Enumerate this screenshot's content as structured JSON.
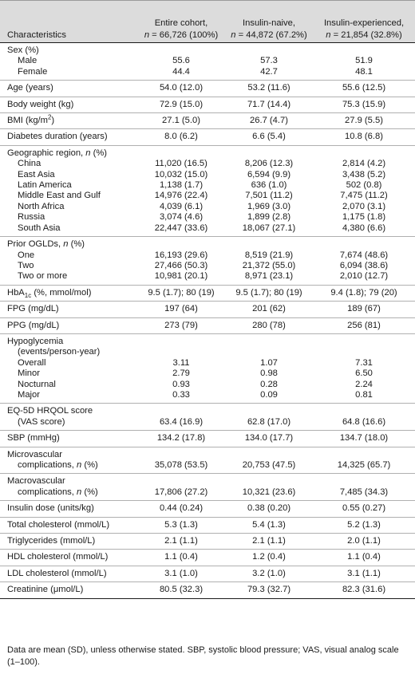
{
  "header": {
    "characteristics": "Characteristics",
    "cols": [
      {
        "line1": "Entire cohort,",
        "n_label": "n",
        "n_rest": " = 66,726 (100%)"
      },
      {
        "line1": "Insulin-naive,",
        "n_label": "n",
        "n_rest": " = 44,872 (67.2%)"
      },
      {
        "line1": "Insulin-experienced,",
        "n_label": "n",
        "n_rest": " = 21,854 (32.8%)"
      }
    ]
  },
  "rows": {
    "sex": {
      "label": "Sex (%)",
      "male": "Male",
      "female": "Female",
      "male_vals": [
        "55.6",
        "57.3",
        "51.9"
      ],
      "female_vals": [
        "44.4",
        "42.7",
        "48.1"
      ]
    },
    "age": {
      "label": "Age (years)",
      "vals": [
        "54.0 (12.0)",
        "53.2 (11.6)",
        "55.6 (12.5)"
      ]
    },
    "weight": {
      "label": "Body weight (kg)",
      "vals": [
        "72.9 (15.0)",
        "71.7 (14.4)",
        "75.3 (15.9)"
      ]
    },
    "bmi": {
      "label_pre": "BMI (kg/m",
      "label_sup": "2",
      "label_post": ")",
      "vals": [
        "27.1 (5.0)",
        "26.7 (4.7)",
        "27.9 (5.5)"
      ]
    },
    "duration": {
      "label": "Diabetes duration (years)",
      "vals": [
        "8.0 (6.2)",
        "6.6 (5.4)",
        "10.8 (6.8)"
      ]
    },
    "region": {
      "label_pre": "Geographic region, ",
      "label_n": "n",
      "label_post": " (%)",
      "items": [
        {
          "name": "China",
          "vals": [
            "11,020 (16.5)",
            "8,206 (12.3)",
            "2,814 (4.2)"
          ]
        },
        {
          "name": "East Asia",
          "vals": [
            "10,032 (15.0)",
            "6,594 (9.9)",
            "3,438 (5.2)"
          ]
        },
        {
          "name": "Latin America",
          "vals": [
            "1,138 (1.7)",
            "636 (1.0)",
            "502 (0.8)"
          ]
        },
        {
          "name": "Middle East and Gulf",
          "vals": [
            "14,976 (22.4)",
            "7,501 (11.2)",
            "7,475 (11.2)"
          ]
        },
        {
          "name": "North Africa",
          "vals": [
            "4,039 (6.1)",
            "1,969 (3.0)",
            "2,070 (3.1)"
          ]
        },
        {
          "name": "Russia",
          "vals": [
            "3,074 (4.6)",
            "1,899 (2.8)",
            "1,175 (1.8)"
          ]
        },
        {
          "name": "South Asia",
          "vals": [
            "22,447 (33.6)",
            "18,067 (27.1)",
            "4,380 (6.6)"
          ]
        }
      ]
    },
    "ogld": {
      "label_pre": "Prior OGLDs, ",
      "label_n": "n",
      "label_post": " (%)",
      "items": [
        {
          "name": "One",
          "vals": [
            "16,193 (29.6)",
            "8,519 (21.9)",
            "7,674 (48.6)"
          ]
        },
        {
          "name": "Two",
          "vals": [
            "27,466 (50.3)",
            "21,372 (55.0)",
            "6,094 (38.6)"
          ]
        },
        {
          "name": "Two or more",
          "vals": [
            "10,981 (20.1)",
            "8,971 (23.1)",
            "2,010 (12.7)"
          ]
        }
      ]
    },
    "hba1c": {
      "label_pre": "HbA",
      "label_sub": "1c",
      "label_post": " (%, mmol/mol)",
      "vals": [
        "9.5 (1.7); 80 (19)",
        "9.5 (1.7); 80 (19)",
        "9.4 (1.8); 79 (20)"
      ]
    },
    "fpg": {
      "label": "FPG (mg/dL)",
      "vals": [
        "197 (64)",
        "201 (62)",
        "189 (67)"
      ]
    },
    "ppg": {
      "label": "PPG (mg/dL)",
      "vals": [
        "273 (79)",
        "280 (78)",
        "256 (81)"
      ]
    },
    "hypo": {
      "label": "Hypoglycemia",
      "label2": "(events/person-year)",
      "items": [
        {
          "name": "Overall",
          "vals": [
            "3.11",
            "1.07",
            "7.31"
          ]
        },
        {
          "name": "Minor",
          "vals": [
            "2.79",
            "0.98",
            "6.50"
          ]
        },
        {
          "name": "Nocturnal",
          "vals": [
            "0.93",
            "0.28",
            "2.24"
          ]
        },
        {
          "name": "Major",
          "vals": [
            "0.33",
            "0.09",
            "0.81"
          ]
        }
      ]
    },
    "eq5d": {
      "label": "EQ-5D HRQOL score",
      "label2": "(VAS score)",
      "vals": [
        "63.4 (16.9)",
        "62.8 (17.0)",
        "64.8 (16.6)"
      ]
    },
    "sbp": {
      "label": "SBP (mmHg)",
      "vals": [
        "134.2 (17.8)",
        "134.0 (17.7)",
        "134.7 (18.0)"
      ]
    },
    "micro": {
      "label": "Microvascular",
      "label2_pre": "complications, ",
      "label2_n": "n",
      "label2_post": " (%)",
      "vals": [
        "35,078 (53.5)",
        "20,753 (47.5)",
        "14,325 (65.7)"
      ]
    },
    "macro": {
      "label": "Macrovascular",
      "label2_pre": "complications, ",
      "label2_n": "n",
      "label2_post": " (%)",
      "vals": [
        "17,806 (27.2)",
        "10,321 (23.6)",
        "7,485 (34.3)"
      ]
    },
    "insulin": {
      "label": "Insulin dose (units/kg)",
      "vals": [
        "0.44 (0.24)",
        "0.38 (0.20)",
        "0.55 (0.27)"
      ]
    },
    "tc": {
      "label": "Total cholesterol (mmol/L)",
      "vals": [
        "5.3 (1.3)",
        "5.4 (1.3)",
        "5.2 (1.3)"
      ]
    },
    "tg": {
      "label": "Triglycerides (mmol/L)",
      "vals": [
        "2.1 (1.1)",
        "2.1 (1.1)",
        "2.0 (1.1)"
      ]
    },
    "hdl": {
      "label": "HDL cholesterol (mmol/L)",
      "vals": [
        "1.1 (0.4)",
        "1.2 (0.4)",
        "1.1 (0.4)"
      ]
    },
    "ldl": {
      "label": "LDL cholesterol (mmol/L)",
      "vals": [
        "3.1 (1.0)",
        "3.2 (1.0)",
        "3.1 (1.1)"
      ]
    },
    "creat": {
      "label": "Creatinine (μmol/L)",
      "vals": [
        "80.5 (32.3)",
        "79.3 (32.7)",
        "82.3 (31.6)"
      ]
    }
  },
  "footnote": "Data are mean (SD), unless otherwise stated. SBP, systolic blood pressure; VAS, visual analog scale (1–100)."
}
